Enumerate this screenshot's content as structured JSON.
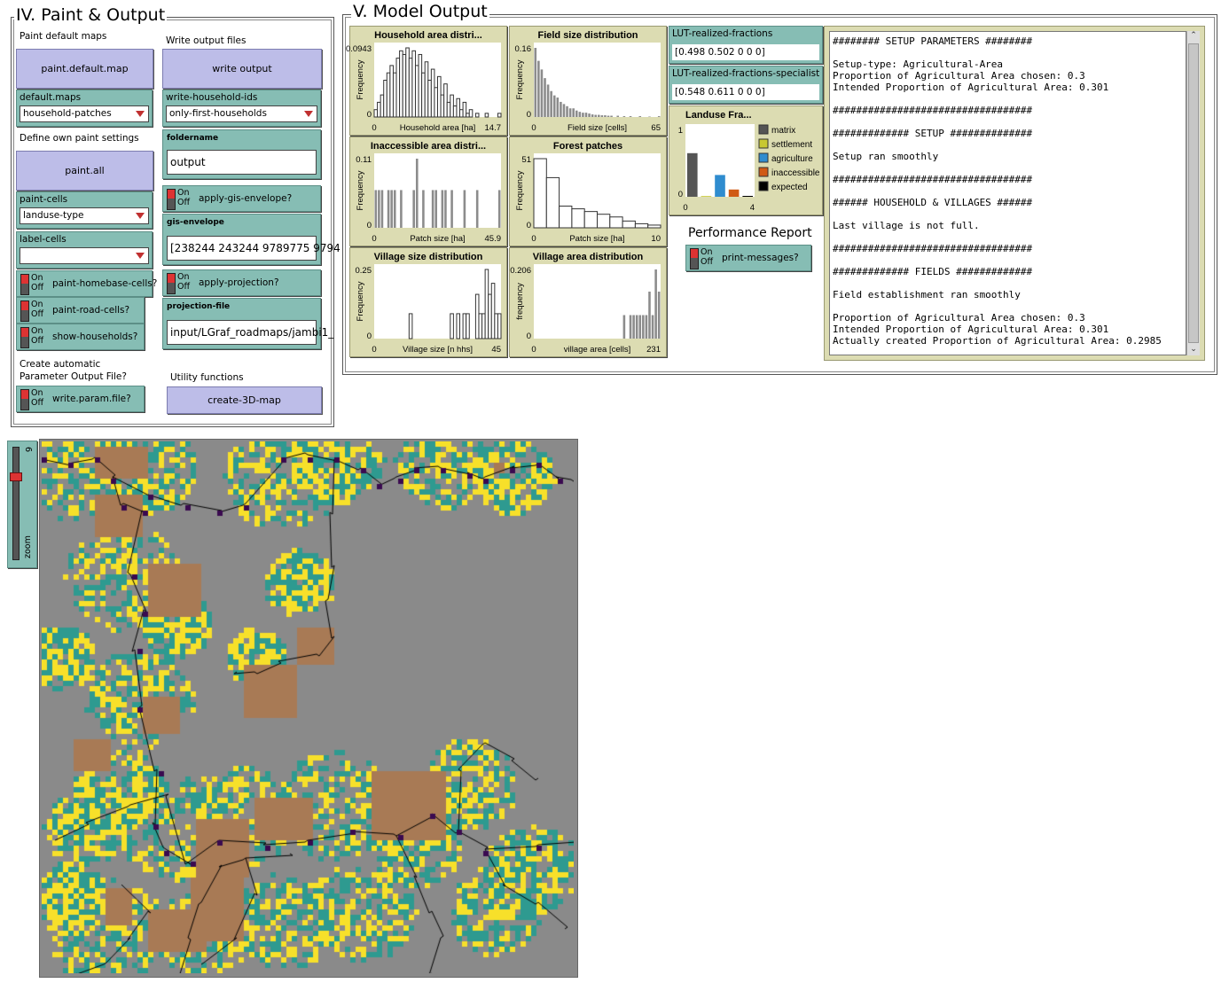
{
  "paint_panel": {
    "title": "IV. Paint & Output",
    "paint_default_maps_label": "Paint default maps",
    "paint_default_map_button": "paint.default.map",
    "default_maps": {
      "label": "default.maps",
      "value": "household-patches"
    },
    "define_own_label": "Define own paint settings",
    "paint_all_button": "paint.all",
    "paint_cells": {
      "label": "paint-cells",
      "value": "landuse-type"
    },
    "label_cells": {
      "label": "label-cells",
      "value": ""
    },
    "switch_on": "On",
    "switch_off": "Off",
    "paint_homebase_cells": "paint-homebase-cells?",
    "paint_road_cells": "paint-road-cells?",
    "show_households": "show-households?",
    "auto_param_label_1": "Create automatic",
    "auto_param_label_2": "Parameter Output File?",
    "write_param_file": "write.param.file?",
    "write_output_files_label": "Write output files",
    "write_output_button": "write output",
    "write_household_ids": {
      "label": "write-household-ids",
      "value": "only-first-households"
    },
    "foldername": {
      "label": "foldername",
      "value": "output"
    },
    "apply_gis_envelope": "apply-gis-envelope?",
    "gis_envelope": {
      "label": "gis-envelope",
      "value": "[238244 243244 9789775 9794"
    },
    "apply_projection": "apply-projection?",
    "projection_file": {
      "label": "projection-file",
      "value": "input/LGraf_roadmaps/jambi1_"
    },
    "utility_label": "Utility functions",
    "create_3d_map_button": "create-3D-map"
  },
  "model_output": {
    "title": "V. Model Output",
    "monitors": [
      {
        "label": "LUT-realized-fractions",
        "value": "[0.498 0.502 0 0 0]"
      },
      {
        "label": "LUT-realized-fractions-specialist",
        "value": "[0.548 0.611 0 0 0]"
      }
    ],
    "performance_label": "Performance Report",
    "print_messages": "print-messages?",
    "output_text": "######## SETUP PARAMETERS ########\n\nSetup-type: Agricultural-Area\nProportion of Agricultural Area chosen: 0.3\nIntended Proportion of Agricultural Area: 0.301\n\n##################################\n\n############# SETUP ##############\n\nSetup ran smoothly\n\n##################################\n\n###### HOUSEHOLD & VILLAGES ######\n\nLast village is not full.\n\n##################################\n\n############# FIELDS #############\n\nField establishment ran smoothly\n\nProportion of Agricultural Area chosen: 0.3\nIntended Proportion of Agricultural Area: 0.301\nActually created Proportion of Agricultural Area: 0.2985"
  },
  "zoom": {
    "label": "zoom",
    "value": "6"
  },
  "colors": {
    "matrix": "#8a8a8a",
    "agriculture": "#2e9a90",
    "settlement": "#f7e02a",
    "inaccessible": "#a87a55",
    "road": "#3a0a50"
  },
  "chart_data": [
    {
      "type": "bar",
      "title": "Household area distri...",
      "xlabel": "Household area [ha]",
      "ylabel": "Frequency",
      "x_ticks": [
        "0",
        "14.7"
      ],
      "y_ticks": [
        "0",
        "0.0943"
      ],
      "values": [
        0.01,
        0.02,
        0.03,
        0.05,
        0.06,
        0.07,
        0.06,
        0.08,
        0.09,
        0.085,
        0.094,
        0.08,
        0.09,
        0.07,
        0.085,
        0.06,
        0.075,
        0.05,
        0.065,
        0.04,
        0.055,
        0.03,
        0.045,
        0.02,
        0.03,
        0.015,
        0.025,
        0.01,
        0.02,
        0.005,
        0.01,
        0,
        0.005,
        0,
        0,
        0.005,
        0,
        0,
        0,
        0.005
      ],
      "style": "outline"
    },
    {
      "type": "bar",
      "title": "Field size distribution",
      "xlabel": "Field size [cells]",
      "ylabel": "Frequency",
      "x_ticks": [
        "0",
        "65"
      ],
      "y_ticks": [
        "0",
        "0.16"
      ],
      "values": [
        0.16,
        0.13,
        0.11,
        0.09,
        0.075,
        0.06,
        0.05,
        0.045,
        0.035,
        0.03,
        0.025,
        0.02,
        0.02,
        0.015,
        0.012,
        0.01,
        0.01,
        0.008,
        0.006,
        0.005,
        0.005,
        0.004,
        0.004,
        0.003,
        0.003,
        0,
        0.003,
        0,
        0.002,
        0,
        0.002,
        0,
        0,
        0.002,
        0,
        0,
        0.001,
        0,
        0,
        0.002
      ],
      "style": "solid"
    },
    {
      "type": "bar",
      "title": "Inaccessible area distri...",
      "xlabel": "Patch size [ha]",
      "ylabel": "Frequency",
      "x_ticks": [
        "0",
        "45.9"
      ],
      "y_ticks": [
        "0",
        "0.11"
      ],
      "values": [
        0.06,
        0.06,
        0.06,
        0,
        0.06,
        0.06,
        0.06,
        0,
        0.06,
        0,
        0,
        0,
        0.06,
        0.11,
        0,
        0.06,
        0,
        0,
        0.06,
        0.06,
        0,
        0.06,
        0.06,
        0,
        0.06,
        0,
        0,
        0,
        0.06,
        0,
        0,
        0,
        0.06,
        0,
        0,
        0,
        0,
        0,
        0,
        0.06
      ],
      "style": "solid"
    },
    {
      "type": "bar",
      "title": "Forest patches",
      "xlabel": "Patch size [ha]",
      "ylabel": "Frequency",
      "x_ticks": [
        "0",
        "10"
      ],
      "y_ticks": [
        "0",
        "51"
      ],
      "values": [
        51,
        37,
        16,
        14,
        12,
        10,
        8,
        5,
        3,
        2
      ],
      "style": "outline"
    },
    {
      "type": "bar",
      "title": "Village size distribution",
      "xlabel": "Village size [n hhs]",
      "ylabel": "Frequency",
      "x_ticks": [
        "0",
        "45"
      ],
      "y_ticks": [
        "0",
        "0.25"
      ],
      "values": [
        0,
        0,
        0,
        0,
        0,
        0,
        0,
        0,
        0,
        0,
        0,
        0.09,
        0,
        0,
        0,
        0,
        0,
        0,
        0,
        0,
        0,
        0,
        0,
        0,
        0.09,
        0,
        0.09,
        0,
        0.09,
        0.09,
        0,
        0,
        0.16,
        0.09,
        0.09,
        0.25,
        0.16,
        0.2,
        0.09,
        0.09
      ],
      "style": "outline"
    },
    {
      "type": "bar",
      "title": "Village area distribution",
      "xlabel": "village area [cells]",
      "ylabel": "frequency",
      "x_ticks": [
        "0",
        "231"
      ],
      "y_ticks": [
        "0",
        "0.206"
      ],
      "values": [
        0,
        0,
        0,
        0,
        0,
        0,
        0,
        0,
        0,
        0,
        0,
        0,
        0,
        0,
        0,
        0,
        0,
        0,
        0,
        0,
        0,
        0,
        0,
        0,
        0,
        0,
        0,
        0,
        0.07,
        0,
        0.07,
        0.07,
        0.07,
        0.07,
        0.07,
        0.07,
        0.14,
        0.07,
        0.206,
        0.14
      ],
      "style": "solid"
    },
    {
      "type": "bar",
      "title": "Landuse Fra...",
      "x_ticks": [
        "0",
        "4"
      ],
      "y_ticks": [
        "0",
        "1"
      ],
      "categories": [
        "matrix",
        "settlement",
        "agriculture",
        "inaccessible",
        "expected"
      ],
      "values": [
        0.6,
        0.01,
        0.3,
        0.1,
        0
      ],
      "colors": [
        "#555555",
        "#c8c832",
        "#2f8ccf",
        "#d05a14",
        "#000000"
      ]
    }
  ]
}
